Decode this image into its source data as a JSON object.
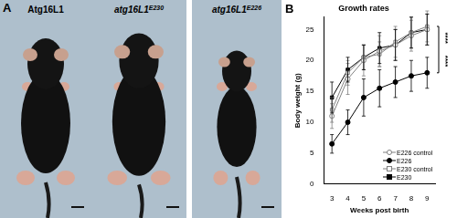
{
  "panel_a": {
    "label": "A",
    "mice": [
      {
        "text": "Atg16L1"
      },
      {
        "text": "atg16L1",
        "superscript": "E230"
      },
      {
        "text": "atg16L1",
        "superscript": "E226"
      }
    ]
  },
  "panel_b_label": "B",
  "chart_data": {
    "type": "line",
    "title": "Growth rates",
    "x_label": "Weeks post birth",
    "y_label": "Body weight (g)",
    "x": [
      3,
      4,
      5,
      6,
      7,
      8,
      9
    ],
    "xlim": [
      2.5,
      9.5
    ],
    "xticks": [
      3,
      4,
      5,
      6,
      7,
      8,
      9
    ],
    "ylim": [
      0,
      27
    ],
    "yticks": [
      0,
      5,
      10,
      15,
      20,
      25
    ],
    "grid": false,
    "legend": "lower right",
    "annotations": [
      "****",
      "****"
    ],
    "series": [
      {
        "name": "E226 control",
        "color": "#808080",
        "marker": "circle-open",
        "line_style": "solid",
        "values": [
          11,
          17,
          20,
          21.5,
          22.5,
          24,
          25
        ],
        "errors": [
          2,
          2.5,
          2.5,
          2.5,
          2.5,
          2.5,
          2.5
        ]
      },
      {
        "name": "E226",
        "color": "#000000",
        "marker": "circle",
        "line_style": "solid",
        "values": [
          6.5,
          10,
          14,
          15.5,
          16.5,
          17.5,
          18
        ],
        "errors": [
          1.5,
          2,
          3,
          3,
          2.5,
          2.5,
          2.5
        ]
      },
      {
        "name": "E230 control",
        "color": "#808080",
        "marker": "square-open",
        "line_style": "solid",
        "values": [
          12,
          18,
          20.5,
          21,
          23,
          24.5,
          25.5
        ],
        "errors": [
          2,
          2,
          2,
          2,
          2.5,
          2.5,
          2.5
        ]
      },
      {
        "name": "E230",
        "color": "#000000",
        "marker": "square",
        "line_style": "solid",
        "values": [
          14,
          18.5,
          20.5,
          22,
          22.5,
          24.5,
          25
        ],
        "errors": [
          2.5,
          2,
          2,
          2.5,
          2.5,
          2.5,
          2.5
        ]
      }
    ]
  }
}
